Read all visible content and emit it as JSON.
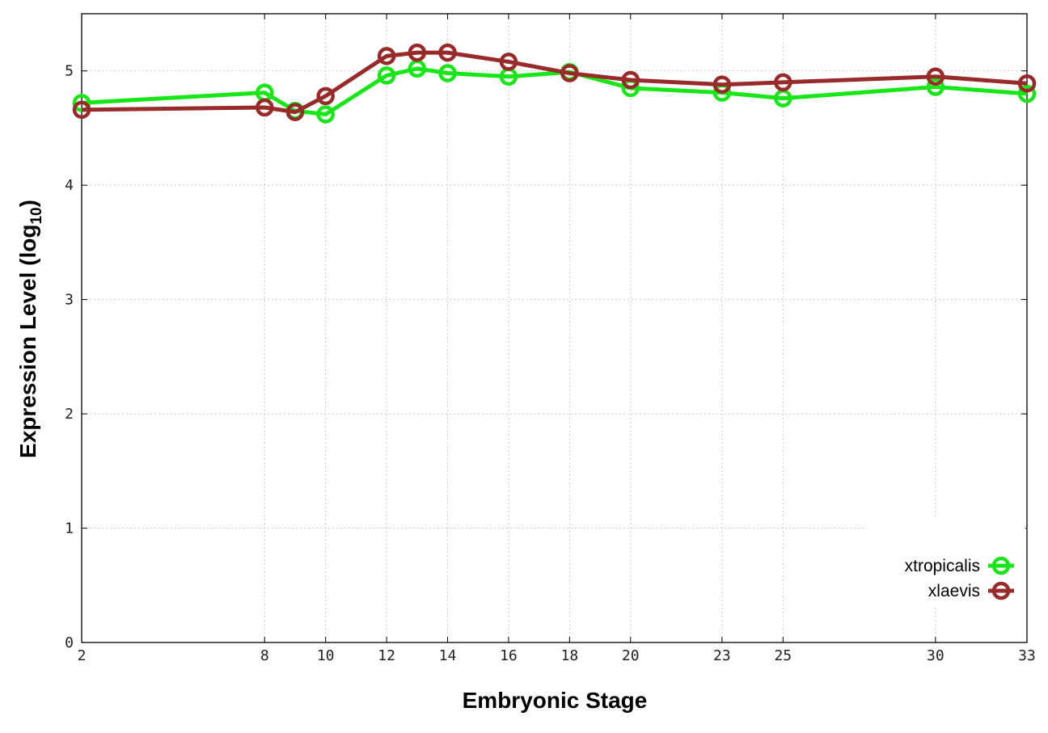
{
  "chart_data": {
    "type": "line",
    "xlabel": "Embryonic Stage",
    "ylabel": "Expression Level (log",
    "ylabel_subscript": "10",
    "ylabel_close": ")",
    "x_ticks": [
      2,
      8,
      10,
      12,
      14,
      16,
      18,
      20,
      23,
      25,
      30,
      33
    ],
    "y_ticks": [
      0,
      1,
      2,
      3,
      4,
      5
    ],
    "xlim": [
      2,
      33
    ],
    "ylim": [
      0,
      5.5
    ],
    "grid": true,
    "legend_position": "bottom-right",
    "x": [
      2,
      8,
      9,
      10,
      12,
      13,
      14,
      16,
      18,
      20,
      23,
      25,
      30,
      33
    ],
    "series": [
      {
        "name": "xtropicalis",
        "color": "#19e619",
        "values": [
          4.72,
          4.81,
          4.65,
          4.62,
          4.96,
          5.02,
          4.98,
          4.95,
          4.99,
          4.85,
          4.81,
          4.76,
          4.86,
          4.8
        ]
      },
      {
        "name": "xlaevis",
        "color": "#992a2a",
        "values": [
          4.66,
          4.68,
          4.64,
          4.78,
          5.13,
          5.16,
          5.16,
          5.08,
          4.98,
          4.92,
          4.88,
          4.9,
          4.95,
          4.89
        ]
      }
    ]
  }
}
